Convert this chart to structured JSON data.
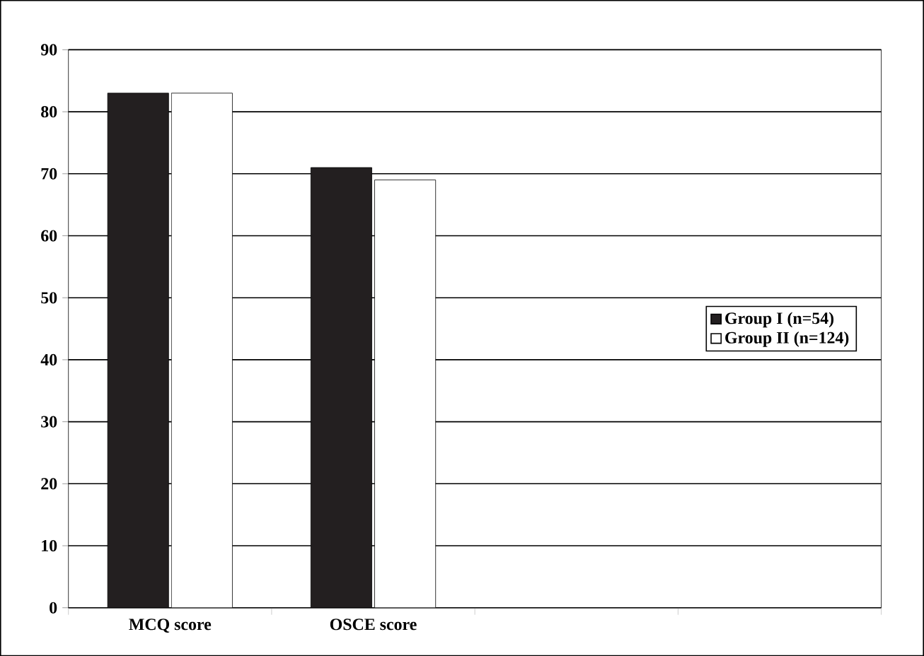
{
  "chart_data": {
    "type": "bar",
    "categories": [
      "MCQ score",
      "OSCE score",
      null,
      null
    ],
    "series": [
      {
        "name": "Group I (n=54)",
        "color": "#231f20",
        "values": [
          83,
          71,
          null,
          null
        ]
      },
      {
        "name": "Group II (n=124)",
        "color": "#ffffff",
        "values": [
          83,
          69,
          null,
          null
        ]
      }
    ],
    "ylim": [
      0,
      90
    ],
    "yticks": [
      0,
      10,
      20,
      30,
      40,
      50,
      60,
      70,
      80,
      90
    ],
    "grid": "y",
    "legend": "right"
  }
}
